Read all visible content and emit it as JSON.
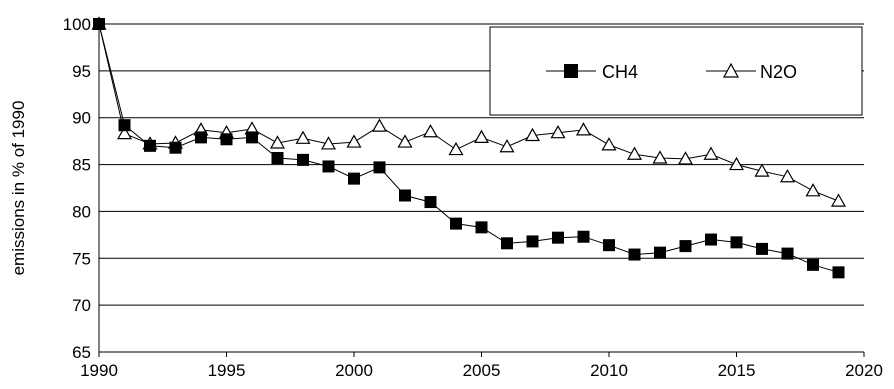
{
  "chart_data": {
    "type": "line",
    "title": "",
    "xlabel": "",
    "ylabel": "emissions in % of 1990",
    "xlim": [
      1990,
      2020
    ],
    "ylim": [
      65,
      100
    ],
    "x_ticks": [
      1990,
      1995,
      2000,
      2005,
      2010,
      2015,
      2020
    ],
    "y_ticks": [
      65,
      70,
      75,
      80,
      85,
      90,
      95,
      100
    ],
    "grid": "horizontal",
    "legend_position": "top-right",
    "x": [
      1990,
      1991,
      1992,
      1993,
      1994,
      1995,
      1996,
      1997,
      1998,
      1999,
      2000,
      2001,
      2002,
      2003,
      2004,
      2005,
      2006,
      2007,
      2008,
      2009,
      2010,
      2011,
      2012,
      2013,
      2014,
      2015,
      2016,
      2017,
      2018,
      2019
    ],
    "series": [
      {
        "name": "CH4",
        "marker": "filled-square",
        "color": "#000000",
        "values": [
          100,
          89.2,
          87.0,
          86.8,
          87.9,
          87.7,
          87.9,
          85.7,
          85.5,
          84.8,
          83.5,
          84.7,
          81.7,
          81.0,
          78.7,
          78.3,
          76.6,
          76.8,
          77.2,
          77.3,
          76.4,
          75.4,
          75.6,
          76.3,
          77.0,
          76.7,
          76.0,
          75.5,
          74.3,
          73.5
        ]
      },
      {
        "name": "N2O",
        "marker": "open-triangle",
        "color": "#000000",
        "values": [
          100,
          88.3,
          87.2,
          87.3,
          88.7,
          88.4,
          88.8,
          87.3,
          87.8,
          87.2,
          87.4,
          89.1,
          87.4,
          88.5,
          86.6,
          87.9,
          86.9,
          88.1,
          88.4,
          88.7,
          87.1,
          86.1,
          85.7,
          85.6,
          86.1,
          85.0,
          84.3,
          83.7,
          82.2,
          81.1
        ]
      }
    ]
  }
}
